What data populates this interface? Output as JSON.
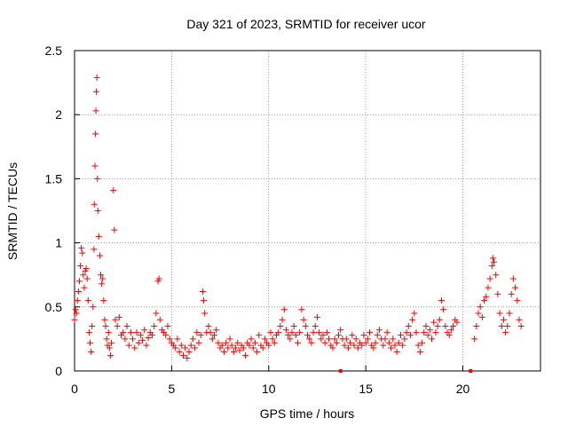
{
  "chart_data": {
    "type": "scatter",
    "title": "Day 321 of 2023, SRMTID for receiver ucor",
    "xlabel": "GPS time / hours",
    "ylabel": "SRMTID / TECUs",
    "xlim": [
      0,
      24
    ],
    "ylim": [
      0,
      2.5
    ],
    "grid": true,
    "marker": "+",
    "color": "#ff0000",
    "x_ticks": [
      {
        "value": 0,
        "label": "0"
      },
      {
        "value": 5,
        "label": "5"
      },
      {
        "value": 10,
        "label": "10"
      },
      {
        "value": 15,
        "label": "15"
      },
      {
        "value": 20,
        "label": "20"
      }
    ],
    "y_ticks": [
      {
        "value": 0,
        "label": "0"
      },
      {
        "value": 0.5,
        "label": "0.5"
      },
      {
        "value": 1,
        "label": "1"
      },
      {
        "value": 1.5,
        "label": "1.5"
      },
      {
        "value": 2,
        "label": "2"
      },
      {
        "value": 2.5,
        "label": "2.5"
      }
    ],
    "series": [
      {
        "name": "SRMTID",
        "points": [
          [
            0.0,
            0.4
          ],
          [
            0.05,
            0.48
          ],
          [
            0.1,
            0.45
          ],
          [
            0.15,
            0.55
          ],
          [
            0.2,
            0.62
          ],
          [
            0.25,
            0.7
          ],
          [
            0.3,
            0.82
          ],
          [
            0.35,
            0.96
          ],
          [
            0.4,
            0.92
          ],
          [
            0.45,
            0.75
          ],
          [
            0.5,
            0.65
          ],
          [
            0.55,
            0.78
          ],
          [
            0.6,
            0.8
          ],
          [
            0.65,
            0.72
          ],
          [
            0.7,
            0.55
          ],
          [
            0.75,
            0.3
          ],
          [
            0.8,
            0.22
          ],
          [
            0.85,
            0.15
          ],
          [
            0.9,
            0.35
          ],
          [
            0.95,
            0.5
          ],
          [
            1.0,
            0.95
          ],
          [
            1.02,
            1.3
          ],
          [
            1.05,
            1.6
          ],
          [
            1.08,
            1.85
          ],
          [
            1.1,
            2.03
          ],
          [
            1.12,
            2.18
          ],
          [
            1.15,
            2.29
          ],
          [
            1.18,
            1.5
          ],
          [
            1.2,
            1.25
          ],
          [
            1.25,
            1.05
          ],
          [
            1.3,
            0.9
          ],
          [
            1.35,
            0.75
          ],
          [
            1.4,
            0.68
          ],
          [
            1.45,
            0.72
          ],
          [
            1.5,
            0.55
          ],
          [
            1.55,
            0.4
          ],
          [
            1.6,
            0.35
          ],
          [
            1.65,
            0.25
          ],
          [
            1.7,
            0.2
          ],
          [
            1.75,
            0.3
          ],
          [
            1.8,
            0.18
          ],
          [
            1.85,
            0.12
          ],
          [
            1.9,
            0.22
          ],
          [
            2.0,
            1.41
          ],
          [
            2.05,
            1.1
          ],
          [
            2.1,
            0.4
          ],
          [
            2.2,
            0.35
          ],
          [
            2.3,
            0.42
          ],
          [
            2.4,
            0.28
          ],
          [
            2.5,
            0.3
          ],
          [
            2.6,
            0.25
          ],
          [
            2.7,
            0.35
          ],
          [
            2.8,
            0.2
          ],
          [
            2.9,
            0.3
          ],
          [
            3.0,
            0.25
          ],
          [
            3.1,
            0.18
          ],
          [
            3.2,
            0.3
          ],
          [
            3.3,
            0.22
          ],
          [
            3.4,
            0.28
          ],
          [
            3.5,
            0.24
          ],
          [
            3.6,
            0.32
          ],
          [
            3.7,
            0.2
          ],
          [
            3.8,
            0.26
          ],
          [
            3.9,
            0.3
          ],
          [
            4.0,
            0.28
          ],
          [
            4.1,
            0.35
          ],
          [
            4.2,
            0.45
          ],
          [
            4.3,
            0.7
          ],
          [
            4.35,
            0.72
          ],
          [
            4.4,
            0.4
          ],
          [
            4.5,
            0.32
          ],
          [
            4.6,
            0.3
          ],
          [
            4.7,
            0.28
          ],
          [
            4.8,
            0.35
          ],
          [
            4.9,
            0.25
          ],
          [
            5.0,
            0.22
          ],
          [
            5.1,
            0.2
          ],
          [
            5.2,
            0.18
          ],
          [
            5.3,
            0.25
          ],
          [
            5.4,
            0.15
          ],
          [
            5.5,
            0.2
          ],
          [
            5.6,
            0.12
          ],
          [
            5.7,
            0.18
          ],
          [
            5.8,
            0.1
          ],
          [
            5.9,
            0.15
          ],
          [
            6.0,
            0.2
          ],
          [
            6.1,
            0.25
          ],
          [
            6.2,
            0.18
          ],
          [
            6.3,
            0.3
          ],
          [
            6.4,
            0.22
          ],
          [
            6.5,
            0.28
          ],
          [
            6.6,
            0.62
          ],
          [
            6.65,
            0.55
          ],
          [
            6.7,
            0.45
          ],
          [
            6.8,
            0.3
          ],
          [
            6.9,
            0.35
          ],
          [
            7.0,
            0.3
          ],
          [
            7.1,
            0.25
          ],
          [
            7.2,
            0.28
          ],
          [
            7.3,
            0.32
          ],
          [
            7.4,
            0.22
          ],
          [
            7.5,
            0.18
          ],
          [
            7.6,
            0.2
          ],
          [
            7.7,
            0.15
          ],
          [
            7.8,
            0.22
          ],
          [
            7.9,
            0.18
          ],
          [
            8.0,
            0.25
          ],
          [
            8.1,
            0.2
          ],
          [
            8.2,
            0.15
          ],
          [
            8.3,
            0.18
          ],
          [
            8.4,
            0.22
          ],
          [
            8.5,
            0.16
          ],
          [
            8.6,
            0.2
          ],
          [
            8.7,
            0.18
          ],
          [
            8.8,
            0.12
          ],
          [
            8.9,
            0.22
          ],
          [
            9.0,
            0.2
          ],
          [
            9.1,
            0.25
          ],
          [
            9.2,
            0.18
          ],
          [
            9.3,
            0.22
          ],
          [
            9.4,
            0.15
          ],
          [
            9.5,
            0.28
          ],
          [
            9.6,
            0.2
          ],
          [
            9.7,
            0.18
          ],
          [
            9.8,
            0.25
          ],
          [
            9.9,
            0.22
          ],
          [
            10.0,
            0.2
          ],
          [
            10.1,
            0.3
          ],
          [
            10.2,
            0.25
          ],
          [
            10.3,
            0.22
          ],
          [
            10.4,
            0.28
          ],
          [
            10.5,
            0.3
          ],
          [
            10.6,
            0.35
          ],
          [
            10.7,
            0.4
          ],
          [
            10.8,
            0.48
          ],
          [
            10.9,
            0.32
          ],
          [
            11.0,
            0.28
          ],
          [
            11.1,
            0.25
          ],
          [
            11.2,
            0.3
          ],
          [
            11.3,
            0.35
          ],
          [
            11.4,
            0.28
          ],
          [
            11.5,
            0.22
          ],
          [
            11.6,
            0.3
          ],
          [
            11.7,
            0.48
          ],
          [
            11.8,
            0.4
          ],
          [
            11.9,
            0.35
          ],
          [
            12.0,
            0.28
          ],
          [
            12.1,
            0.25
          ],
          [
            12.2,
            0.22
          ],
          [
            12.3,
            0.3
          ],
          [
            12.4,
            0.35
          ],
          [
            12.5,
            0.42
          ],
          [
            12.6,
            0.3
          ],
          [
            12.7,
            0.25
          ],
          [
            12.8,
            0.28
          ],
          [
            12.9,
            0.22
          ],
          [
            13.0,
            0.3
          ],
          [
            13.1,
            0.25
          ],
          [
            13.2,
            0.2
          ],
          [
            13.3,
            0.18
          ],
          [
            13.4,
            0.25
          ],
          [
            13.5,
            0.22
          ],
          [
            13.6,
            0.28
          ],
          [
            13.7,
            0.32
          ],
          [
            13.8,
            0.25
          ],
          [
            13.9,
            0.2
          ],
          [
            14.0,
            0.25
          ],
          [
            14.1,
            0.18
          ],
          [
            14.2,
            0.22
          ],
          [
            14.3,
            0.28
          ],
          [
            14.4,
            0.2
          ],
          [
            14.5,
            0.25
          ],
          [
            14.6,
            0.18
          ],
          [
            14.7,
            0.22
          ],
          [
            14.8,
            0.2
          ],
          [
            14.9,
            0.28
          ],
          [
            15.0,
            0.22
          ],
          [
            15.1,
            0.25
          ],
          [
            15.2,
            0.3
          ],
          [
            15.3,
            0.2
          ],
          [
            15.4,
            0.18
          ],
          [
            15.5,
            0.22
          ],
          [
            15.6,
            0.28
          ],
          [
            15.7,
            0.32
          ],
          [
            15.8,
            0.25
          ],
          [
            15.9,
            0.2
          ],
          [
            16.0,
            0.25
          ],
          [
            16.1,
            0.3
          ],
          [
            16.2,
            0.22
          ],
          [
            16.3,
            0.18
          ],
          [
            16.4,
            0.25
          ],
          [
            16.5,
            0.2
          ],
          [
            16.6,
            0.15
          ],
          [
            16.7,
            0.22
          ],
          [
            16.8,
            0.28
          ],
          [
            16.9,
            0.2
          ],
          [
            17.0,
            0.25
          ],
          [
            17.1,
            0.3
          ],
          [
            17.2,
            0.35
          ],
          [
            17.3,
            0.28
          ],
          [
            17.4,
            0.4
          ],
          [
            17.5,
            0.45
          ],
          [
            17.6,
            0.3
          ],
          [
            17.7,
            0.2
          ],
          [
            17.8,
            0.15
          ],
          [
            17.9,
            0.22
          ],
          [
            18.0,
            0.3
          ],
          [
            18.1,
            0.35
          ],
          [
            18.2,
            0.28
          ],
          [
            18.3,
            0.32
          ],
          [
            18.4,
            0.25
          ],
          [
            18.5,
            0.38
          ],
          [
            18.6,
            0.3
          ],
          [
            18.7,
            0.35
          ],
          [
            18.8,
            0.4
          ],
          [
            18.9,
            0.55
          ],
          [
            19.0,
            0.48
          ],
          [
            19.1,
            0.35
          ],
          [
            19.2,
            0.3
          ],
          [
            19.3,
            0.28
          ],
          [
            19.4,
            0.32
          ],
          [
            19.5,
            0.35
          ],
          [
            19.6,
            0.4
          ],
          [
            19.7,
            0.38
          ],
          [
            20.6,
            0.25
          ],
          [
            20.7,
            0.35
          ],
          [
            20.8,
            0.45
          ],
          [
            20.9,
            0.5
          ],
          [
            21.0,
            0.42
          ],
          [
            21.1,
            0.55
          ],
          [
            21.2,
            0.58
          ],
          [
            21.3,
            0.65
          ],
          [
            21.4,
            0.72
          ],
          [
            21.5,
            0.82
          ],
          [
            21.55,
            0.88
          ],
          [
            21.6,
            0.85
          ],
          [
            21.7,
            0.75
          ],
          [
            21.8,
            0.6
          ],
          [
            21.9,
            0.45
          ],
          [
            22.0,
            0.35
          ],
          [
            22.1,
            0.4
          ],
          [
            22.2,
            0.3
          ],
          [
            22.3,
            0.35
          ],
          [
            22.4,
            0.45
          ],
          [
            22.5,
            0.6
          ],
          [
            22.6,
            0.72
          ],
          [
            22.7,
            0.65
          ],
          [
            22.8,
            0.55
          ],
          [
            22.9,
            0.4
          ],
          [
            23.0,
            0.35
          ]
        ]
      }
    ],
    "gap_markers": [
      13.7,
      20.4
    ]
  }
}
